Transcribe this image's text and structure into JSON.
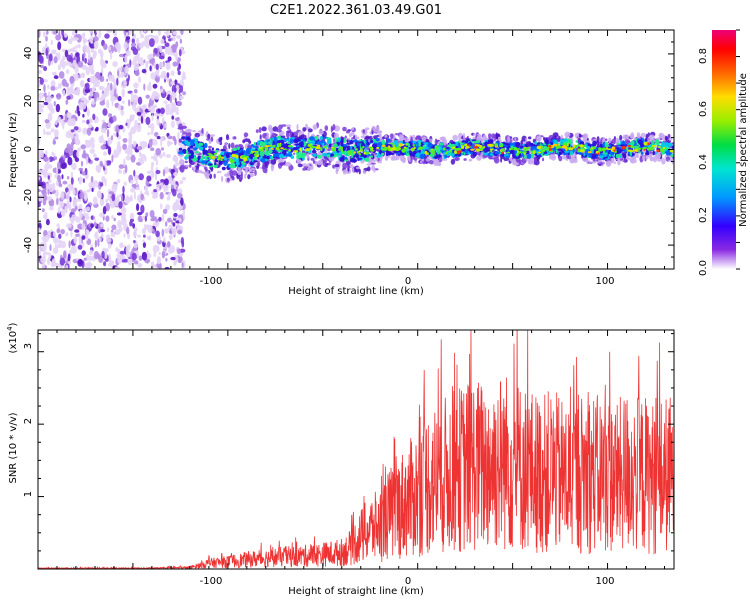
{
  "title": "C2E1.2022.361.03.49.G01",
  "spectrogram": {
    "type": "heatmap",
    "xlabel": "Height of straight line (km)",
    "ylabel": "Frequency (Hz)",
    "xlim": [
      -200,
      135
    ],
    "ylim": [
      -50,
      50
    ],
    "xticks": [
      "-100",
      "0",
      "100"
    ],
    "yticks": [
      "-40",
      "-20",
      "0",
      "20",
      "40"
    ],
    "colorbar": {
      "label": "Normalized spectral amplitude",
      "range": [
        0.0,
        0.9
      ],
      "ticks": [
        "0.0",
        "0.2",
        "0.4",
        "0.6",
        "0.8"
      ]
    }
  },
  "chart_data": {
    "type": "line",
    "xlabel": "Height of straight line (km)",
    "ylabel": "SNR (10 * v/v)",
    "y_multiplier": "(x10",
    "y_multiplier_exp": "4",
    "xlim": [
      -200,
      135
    ],
    "ylim": [
      0,
      3.3
    ],
    "xticks": [
      "-100",
      "0",
      "100"
    ],
    "yticks": [
      "1",
      "2",
      "3"
    ],
    "color": "#ee3333",
    "series": [
      {
        "x": [
          -200,
          -180,
          -160,
          -140,
          -120,
          -115,
          -110,
          -100,
          -90,
          -80,
          -70,
          -60,
          -50,
          -40,
          -35,
          -30,
          -25,
          -20,
          -15,
          -10,
          -5,
          0,
          5,
          10,
          15,
          20,
          25,
          30,
          35,
          40,
          45,
          50,
          55,
          60,
          65,
          70,
          75,
          80,
          85,
          90,
          95,
          100,
          105,
          110,
          115,
          120,
          125,
          130,
          135
        ],
        "values": [
          0.01,
          0.01,
          0.01,
          0.01,
          0.02,
          0.05,
          0.08,
          0.1,
          0.13,
          0.15,
          0.17,
          0.18,
          0.2,
          0.23,
          0.3,
          0.45,
          0.55,
          0.6,
          0.75,
          0.85,
          0.95,
          1.05,
          1.2,
          1.25,
          1.3,
          1.35,
          1.4,
          1.45,
          1.4,
          1.45,
          1.5,
          1.45,
          1.4,
          1.35,
          1.3,
          1.35,
          1.3,
          1.25,
          1.3,
          1.35,
          1.3,
          1.3,
          1.25,
          1.35,
          1.3,
          1.3,
          1.25,
          1.3,
          1.3
        ]
      }
    ]
  }
}
